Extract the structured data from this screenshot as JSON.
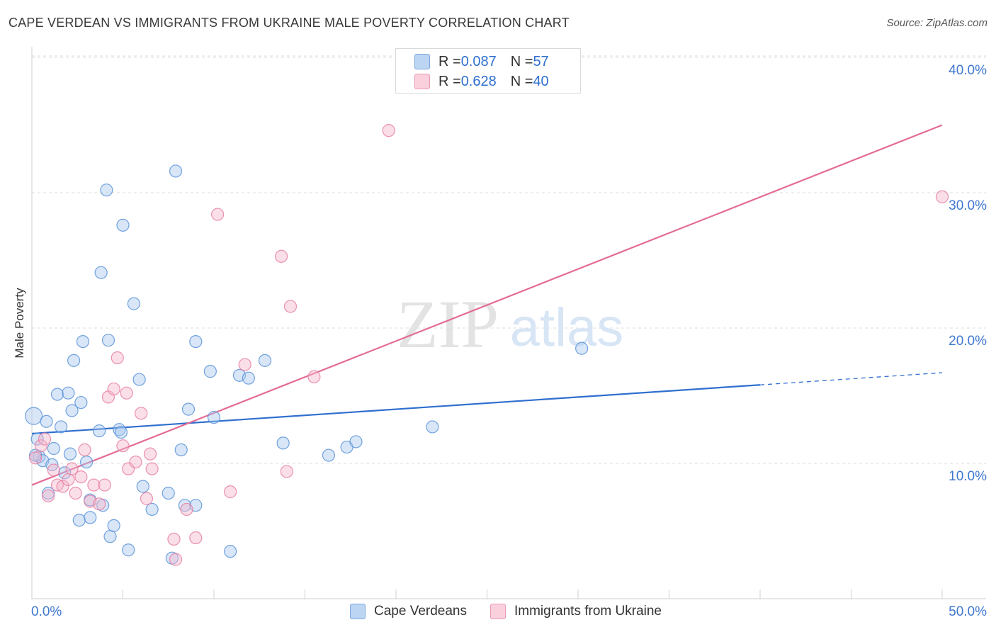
{
  "header": {
    "title": "CAPE VERDEAN VS IMMIGRANTS FROM UKRAINE MALE POVERTY CORRELATION CHART",
    "source": "Source: ZipAtlas.com"
  },
  "watermark": {
    "zip": "ZIP",
    "atlas": "atlas"
  },
  "legend": {
    "rows": [
      {
        "r_label": "R = ",
        "r_value": "0.087",
        "n_label": "N = ",
        "n_value": "57",
        "color": "#a9c8f0"
      },
      {
        "r_label": "R = ",
        "r_value": "0.628",
        "n_label": "N = ",
        "n_value": "40",
        "color": "#f5b8cb"
      }
    ]
  },
  "bottom_legend": [
    {
      "label": "Cape Verdeans",
      "color": "#a9c8f0"
    },
    {
      "label": "Immigrants from Ukraine",
      "color": "#f5b8cb"
    }
  ],
  "chart_data": {
    "type": "scatter",
    "title": "CAPE VERDEAN VS IMMIGRANTS FROM UKRAINE MALE POVERTY CORRELATION CHART",
    "xlabel": "",
    "ylabel": "Male Poverty",
    "xlim": [
      0,
      50
    ],
    "ylim": [
      0,
      42
    ],
    "x_tick_labels": [
      "0.0%",
      "50.0%"
    ],
    "y_ticks": [
      10,
      20,
      30,
      40
    ],
    "y_tick_labels": [
      "10.0%",
      "20.0%",
      "30.0%",
      "40.0%"
    ],
    "grid": true,
    "legend_position": "top-center",
    "series": [
      {
        "name": "Cape Verdeans",
        "color": "#5b93d8",
        "fill": "#a9c8f0",
        "points": [
          [
            0.1,
            13.5
          ],
          [
            0.3,
            11.8
          ],
          [
            0.4,
            10.5
          ],
          [
            0.6,
            10.2
          ],
          [
            0.8,
            13.1
          ],
          [
            0.9,
            7.8
          ],
          [
            1.1,
            9.9
          ],
          [
            1.2,
            11.1
          ],
          [
            1.4,
            15.1
          ],
          [
            1.6,
            12.7
          ],
          [
            1.8,
            9.3
          ],
          [
            2.0,
            15.2
          ],
          [
            2.1,
            10.7
          ],
          [
            2.2,
            13.9
          ],
          [
            2.3,
            17.6
          ],
          [
            2.6,
            5.8
          ],
          [
            2.7,
            14.5
          ],
          [
            2.8,
            19.0
          ],
          [
            3.0,
            10.1
          ],
          [
            3.2,
            6.0
          ],
          [
            3.2,
            7.3
          ],
          [
            3.7,
            12.4
          ],
          [
            3.8,
            24.1
          ],
          [
            3.9,
            6.9
          ],
          [
            4.1,
            30.2
          ],
          [
            4.2,
            19.1
          ],
          [
            4.3,
            4.6
          ],
          [
            4.5,
            5.4
          ],
          [
            4.8,
            12.5
          ],
          [
            4.9,
            12.3
          ],
          [
            5.0,
            27.6
          ],
          [
            5.3,
            3.6
          ],
          [
            5.6,
            21.8
          ],
          [
            5.9,
            16.2
          ],
          [
            6.1,
            8.3
          ],
          [
            6.6,
            6.6
          ],
          [
            7.5,
            7.8
          ],
          [
            7.7,
            3.0
          ],
          [
            7.9,
            31.6
          ],
          [
            8.2,
            11.0
          ],
          [
            8.4,
            6.9
          ],
          [
            8.6,
            14.0
          ],
          [
            9.0,
            19.0
          ],
          [
            9.0,
            6.9
          ],
          [
            9.8,
            16.8
          ],
          [
            10.0,
            13.4
          ],
          [
            10.9,
            3.5
          ],
          [
            11.4,
            16.5
          ],
          [
            11.9,
            16.3
          ],
          [
            12.8,
            17.6
          ],
          [
            13.8,
            11.5
          ],
          [
            16.3,
            10.6
          ],
          [
            17.3,
            11.2
          ],
          [
            17.8,
            11.6
          ],
          [
            22.0,
            12.7
          ],
          [
            30.2,
            18.5
          ],
          [
            0.2,
            10.6
          ]
        ]
      },
      {
        "name": "Immigrants from Ukraine",
        "color": "#e77fa2",
        "fill": "#f5b8cb",
        "points": [
          [
            0.2,
            10.4
          ],
          [
            0.5,
            11.3
          ],
          [
            0.7,
            11.8
          ],
          [
            0.9,
            7.6
          ],
          [
            1.2,
            9.5
          ],
          [
            1.4,
            8.4
          ],
          [
            1.7,
            8.3
          ],
          [
            2.0,
            8.8
          ],
          [
            2.2,
            9.6
          ],
          [
            2.4,
            7.8
          ],
          [
            2.7,
            9.0
          ],
          [
            2.9,
            11.0
          ],
          [
            3.2,
            7.2
          ],
          [
            3.4,
            8.4
          ],
          [
            3.7,
            7.0
          ],
          [
            4.0,
            8.4
          ],
          [
            4.2,
            14.9
          ],
          [
            4.5,
            15.5
          ],
          [
            4.7,
            17.8
          ],
          [
            5.0,
            11.3
          ],
          [
            5.2,
            15.2
          ],
          [
            5.3,
            9.6
          ],
          [
            5.7,
            10.1
          ],
          [
            6.0,
            13.7
          ],
          [
            6.3,
            7.4
          ],
          [
            6.5,
            10.7
          ],
          [
            6.6,
            9.6
          ],
          [
            7.8,
            4.4
          ],
          [
            7.9,
            2.9
          ],
          [
            8.5,
            6.6
          ],
          [
            9.0,
            4.5
          ],
          [
            10.2,
            28.4
          ],
          [
            10.9,
            7.9
          ],
          [
            11.7,
            17.3
          ],
          [
            13.7,
            25.3
          ],
          [
            14.0,
            9.4
          ],
          [
            14.2,
            21.6
          ],
          [
            15.5,
            16.4
          ],
          [
            19.6,
            34.6
          ],
          [
            50.0,
            29.7
          ]
        ]
      }
    ],
    "trend_lines": [
      {
        "series": "Cape Verdeans",
        "color": "#2f6fcf",
        "x_start": 0,
        "y_start": 12.2,
        "x_end": 40,
        "y_end": 15.8,
        "dashed_to_x": 50,
        "dashed_to_y": 16.7
      },
      {
        "series": "Immigrants from Ukraine",
        "color": "#e46b96",
        "x_start": 0,
        "y_start": 8.4,
        "x_end": 50,
        "y_end": 35.0
      }
    ]
  }
}
